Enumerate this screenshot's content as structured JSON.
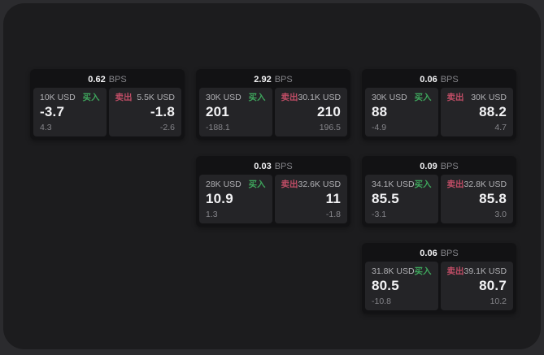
{
  "labels": {
    "bps_unit": "BPS",
    "buy": "买入",
    "sell": "卖出"
  },
  "colors": {
    "buy_green": "#3ea55c",
    "sell_red": "#c04d66",
    "canvas_bg": "#2b2b2e",
    "window_bg": "#1c1c1e",
    "card_bg": "#121214",
    "panel_bg": "#242427"
  },
  "cards": [
    {
      "bps": "0.62",
      "row": 1,
      "col": 1,
      "buy": {
        "size": "10K USD",
        "price": "-3.7",
        "delta": "4.3"
      },
      "sell": {
        "size": "5.5K USD",
        "price": "-1.8",
        "delta": "-2.6"
      }
    },
    {
      "bps": "2.92",
      "row": 1,
      "col": 2,
      "buy": {
        "size": "30K USD",
        "price": "201",
        "delta": "-188.1"
      },
      "sell": {
        "size": "30.1K USD",
        "price": "210",
        "delta": "196.5"
      }
    },
    {
      "bps": "0.06",
      "row": 1,
      "col": 3,
      "buy": {
        "size": "30K USD",
        "price": "88",
        "delta": "-4.9"
      },
      "sell": {
        "size": "30K USD",
        "price": "88.2",
        "delta": "4.7"
      }
    },
    {
      "bps": "0.03",
      "row": 2,
      "col": 2,
      "buy": {
        "size": "28K USD",
        "price": "10.9",
        "delta": "1.3"
      },
      "sell": {
        "size": "32.6K USD",
        "price": "11",
        "delta": "-1.8"
      }
    },
    {
      "bps": "0.09",
      "row": 2,
      "col": 3,
      "buy": {
        "size": "34.1K USD",
        "price": "85.5",
        "delta": "-3.1"
      },
      "sell": {
        "size": "32.8K USD",
        "price": "85.8",
        "delta": "3.0"
      }
    },
    {
      "bps": "0.06",
      "row": 3,
      "col": 3,
      "buy": {
        "size": "31.8K USD",
        "price": "80.5",
        "delta": "-10.8"
      },
      "sell": {
        "size": "39.1K USD",
        "price": "80.7",
        "delta": "10.2"
      }
    }
  ]
}
